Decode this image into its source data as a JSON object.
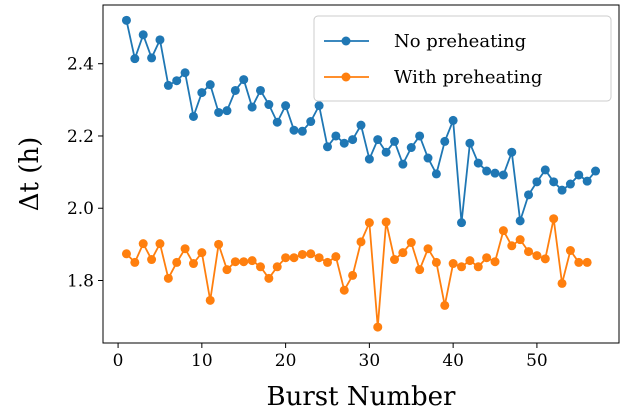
{
  "chart_data": {
    "type": "line",
    "xlabel": "Burst Number",
    "ylabel": "Δt (h)",
    "xlim": [
      -1.8,
      59.8
    ],
    "ylim": [
      1.627,
      2.5625
    ],
    "xticks": [
      0,
      10,
      20,
      30,
      40,
      50
    ],
    "yticks": [
      1.8,
      {
        "value": 2,
        "label": "2.0"
      },
      2.2,
      2.4
    ],
    "grid": false,
    "legend": "upper right",
    "series": [
      {
        "name": "No preheating",
        "color": "#1f77b4",
        "x": [
          1,
          2,
          3,
          4,
          5,
          6,
          7,
          8,
          9,
          10,
          11,
          12,
          13,
          14,
          15,
          16,
          17,
          18,
          19,
          20,
          21,
          22,
          23,
          24,
          25,
          26,
          27,
          28,
          29,
          30,
          31,
          32,
          33,
          34,
          35,
          36,
          37,
          38,
          39,
          40,
          41,
          42,
          43,
          44,
          45,
          46,
          47,
          48,
          49,
          50,
          51,
          52,
          53,
          54,
          55,
          56,
          57
        ],
        "values": [
          2.52,
          2.414,
          2.48,
          2.416,
          2.466,
          2.34,
          2.353,
          2.375,
          2.254,
          2.32,
          2.342,
          2.265,
          2.27,
          2.326,
          2.356,
          2.28,
          2.326,
          2.287,
          2.238,
          2.284,
          2.216,
          2.213,
          2.24,
          2.284,
          2.17,
          2.2,
          2.18,
          2.19,
          2.23,
          2.136,
          2.19,
          2.155,
          2.185,
          2.122,
          2.168,
          2.2,
          2.139,
          2.095,
          2.185,
          2.243,
          1.96,
          2.18,
          2.125,
          2.103,
          2.097,
          2.092,
          2.155,
          1.965,
          2.037,
          2.073,
          2.106,
          2.073,
          2.05,
          2.067,
          2.092,
          2.075,
          2.103
        ]
      },
      {
        "name": "With preheating",
        "color": "#ff7f0e",
        "x": [
          1,
          2,
          3,
          4,
          5,
          6,
          7,
          8,
          9,
          10,
          11,
          12,
          13,
          14,
          15,
          16,
          17,
          18,
          19,
          20,
          21,
          22,
          23,
          24,
          25,
          26,
          27,
          28,
          29,
          30,
          31,
          32,
          33,
          34,
          35,
          36,
          37,
          38,
          39,
          40,
          41,
          42,
          43,
          44,
          45,
          46,
          47,
          48,
          49,
          50,
          51,
          52,
          53,
          54,
          55,
          56
        ],
        "values": [
          1.874,
          1.85,
          1.902,
          1.858,
          1.902,
          1.806,
          1.85,
          1.888,
          1.847,
          1.877,
          1.745,
          1.9,
          1.83,
          1.852,
          1.852,
          1.855,
          1.838,
          1.806,
          1.838,
          1.863,
          1.863,
          1.872,
          1.874,
          1.863,
          1.85,
          1.866,
          1.773,
          1.814,
          1.907,
          1.96,
          1.671,
          1.962,
          1.858,
          1.877,
          1.905,
          1.83,
          1.888,
          1.85,
          1.731,
          1.847,
          1.838,
          1.855,
          1.838,
          1.863,
          1.852,
          1.938,
          1.896,
          1.913,
          1.88,
          1.869,
          1.86,
          1.971,
          1.792,
          1.883,
          1.85,
          1.85
        ]
      }
    ]
  }
}
